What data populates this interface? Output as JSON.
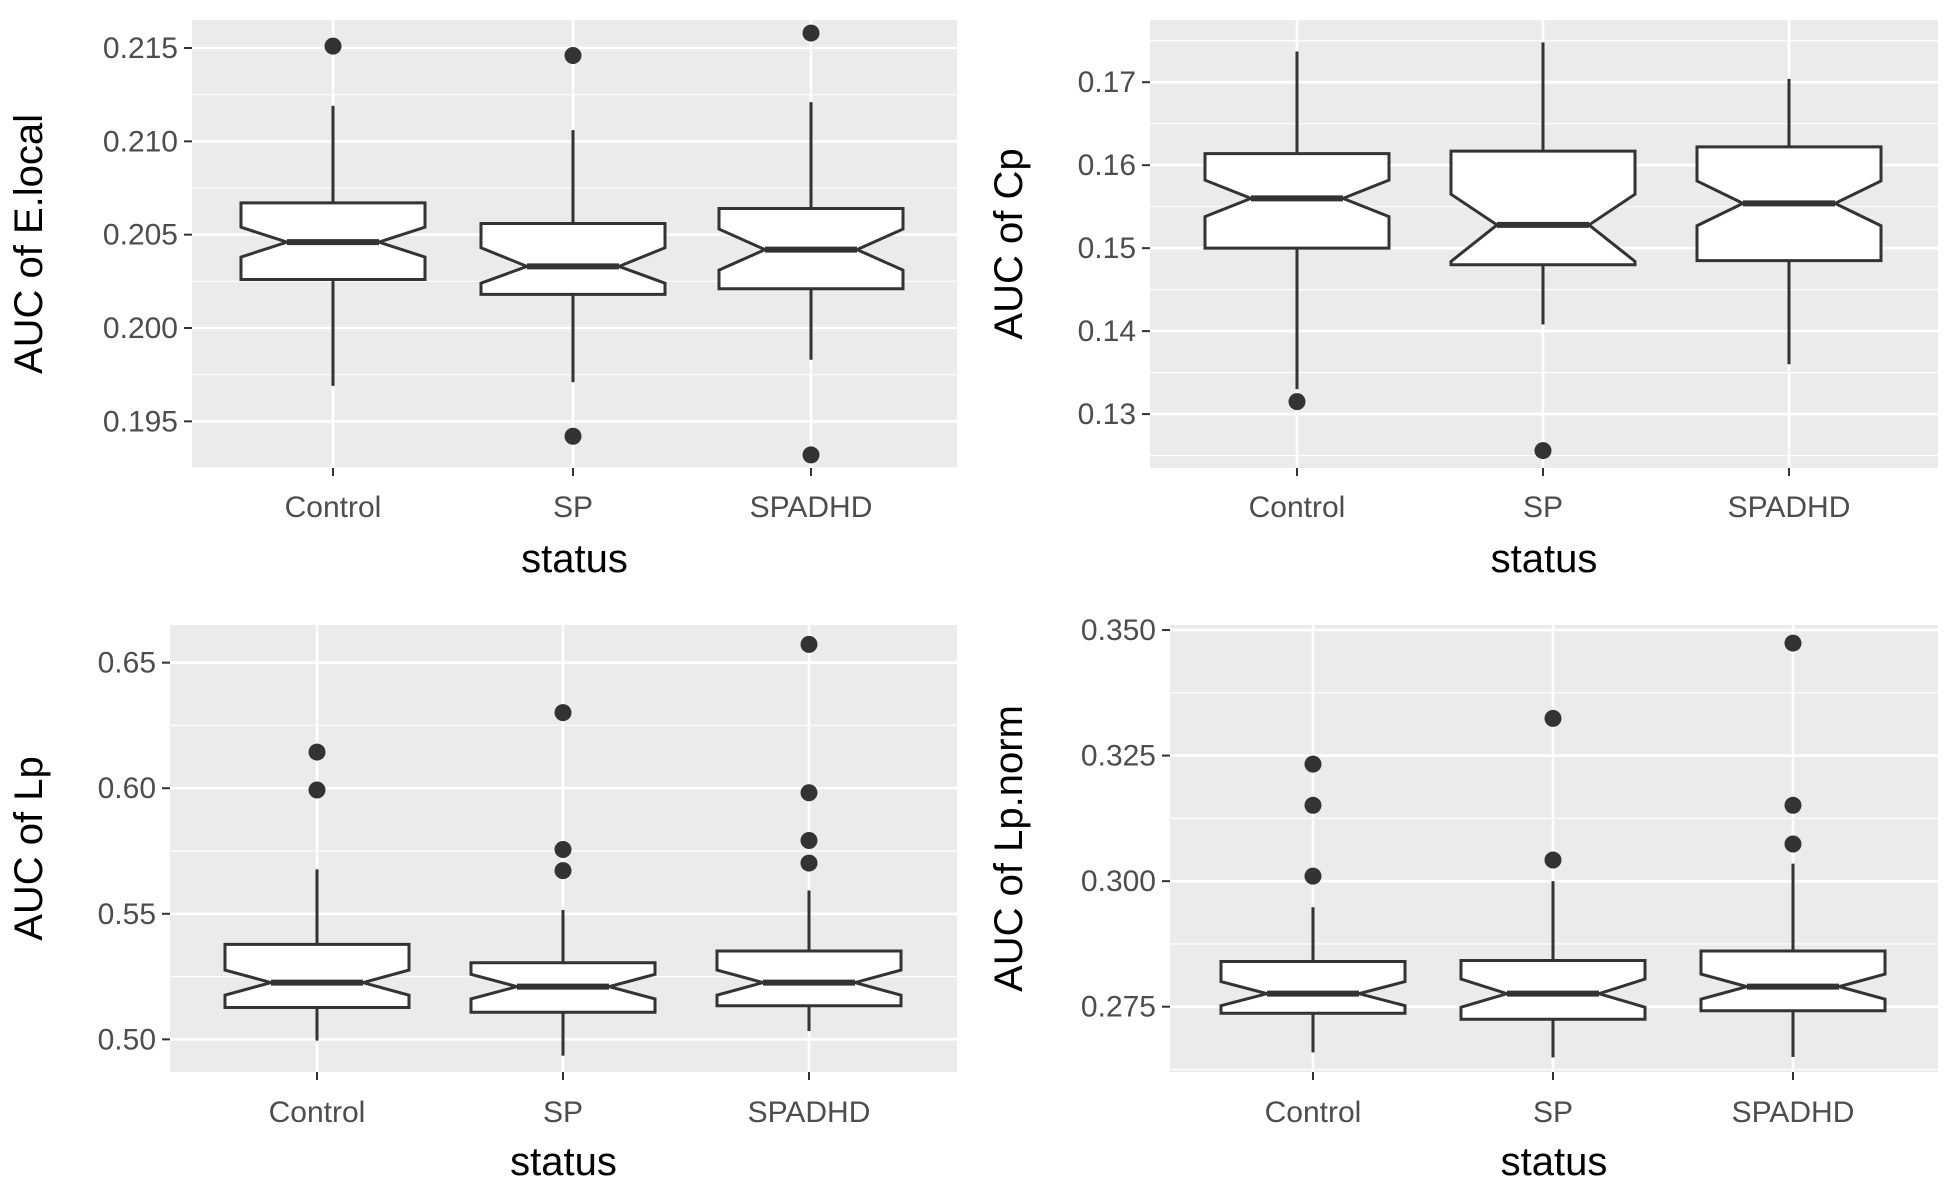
{
  "colors": {
    "panel_background": "#ebebeb",
    "gridline": "#ffffff",
    "box_fill": "#ffffff",
    "box_stroke": "#333333",
    "outlier": "#333333",
    "tick_text": "#4d4d4d",
    "axis_title": "#000000"
  },
  "chart_data": [
    {
      "type": "boxplot",
      "notched": true,
      "xlabel": "status",
      "ylabel": "AUC of E.local",
      "categories": [
        "Control",
        "SP",
        "SPADHD"
      ],
      "ylim": [
        0.1925,
        0.2165
      ],
      "yticks": [
        0.195,
        0.2,
        0.205,
        0.21,
        0.215
      ],
      "ytick_labels": [
        "0.195",
        "0.200",
        "0.205",
        "0.210",
        "0.215"
      ],
      "boxes": [
        {
          "category": "Control",
          "whisker_low": 0.1969,
          "q1": 0.2026,
          "median": 0.2046,
          "q3": 0.2067,
          "whisker_high": 0.2119,
          "notch_low": 0.2038,
          "notch_high": 0.2054,
          "outliers": [
            0.2151
          ]
        },
        {
          "category": "SP",
          "whisker_low": 0.1971,
          "q1": 0.2018,
          "median": 0.2033,
          "q3": 0.2056,
          "whisker_high": 0.2106,
          "notch_low": 0.2024,
          "notch_high": 0.2043,
          "outliers": [
            0.2146,
            0.1942
          ]
        },
        {
          "category": "SPADHD",
          "whisker_low": 0.1983,
          "q1": 0.2021,
          "median": 0.2042,
          "q3": 0.2064,
          "whisker_high": 0.2121,
          "notch_low": 0.2031,
          "notch_high": 0.2053,
          "outliers": [
            0.2158,
            0.1932
          ]
        }
      ]
    },
    {
      "type": "boxplot",
      "notched": true,
      "xlabel": "status",
      "ylabel": "AUC of Cp",
      "categories": [
        "Control",
        "SP",
        "SPADHD"
      ],
      "ylim": [
        0.1235,
        0.1775
      ],
      "yticks": [
        0.13,
        0.14,
        0.15,
        0.16,
        0.17
      ],
      "ytick_labels": [
        "0.13",
        "0.14",
        "0.15",
        "0.16",
        "0.17"
      ],
      "boxes": [
        {
          "category": "Control",
          "whisker_low": 0.133,
          "q1": 0.15,
          "median": 0.156,
          "q3": 0.1614,
          "whisker_high": 0.1737,
          "notch_low": 0.1538,
          "notch_high": 0.1582,
          "outliers": [
            0.1315
          ]
        },
        {
          "category": "SP",
          "whisker_low": 0.1408,
          "q1": 0.148,
          "median": 0.1528,
          "q3": 0.1617,
          "whisker_high": 0.1748,
          "notch_low": 0.1484,
          "notch_high": 0.1565,
          "outliers": [
            0.1256
          ]
        },
        {
          "category": "SPADHD",
          "whisker_low": 0.136,
          "q1": 0.1485,
          "median": 0.1554,
          "q3": 0.1622,
          "whisker_high": 0.1704,
          "notch_low": 0.1527,
          "notch_high": 0.1581,
          "outliers": []
        }
      ]
    },
    {
      "type": "boxplot",
      "notched": true,
      "xlabel": "status",
      "ylabel": "AUC of Lp",
      "categories": [
        "Control",
        "SP",
        "SPADHD"
      ],
      "ylim": [
        0.487,
        0.665
      ],
      "yticks": [
        0.5,
        0.55,
        0.6,
        0.65
      ],
      "ytick_labels": [
        "0.50",
        "0.55",
        "0.60",
        "0.65"
      ],
      "boxes": [
        {
          "category": "Control",
          "whisker_low": 0.4995,
          "q1": 0.5127,
          "median": 0.5226,
          "q3": 0.5378,
          "whisker_high": 0.5677,
          "notch_low": 0.5176,
          "notch_high": 0.5276,
          "outliers": [
            0.5993,
            0.6144
          ]
        },
        {
          "category": "SP",
          "whisker_low": 0.4935,
          "q1": 0.5108,
          "median": 0.521,
          "q3": 0.5305,
          "whisker_high": 0.5515,
          "notch_low": 0.5161,
          "notch_high": 0.5259,
          "outliers": [
            0.5672,
            0.5756,
            0.6301
          ]
        },
        {
          "category": "SPADHD",
          "whisker_low": 0.5033,
          "q1": 0.5134,
          "median": 0.5226,
          "q3": 0.5352,
          "whisker_high": 0.5593,
          "notch_low": 0.5176,
          "notch_high": 0.5276,
          "outliers": [
            0.5702,
            0.5792,
            0.5982,
            0.6573
          ]
        }
      ]
    },
    {
      "type": "boxplot",
      "notched": true,
      "xlabel": "status",
      "ylabel": "AUC of Lp.norm",
      "categories": [
        "Control",
        "SP",
        "SPADHD"
      ],
      "ylim": [
        0.262,
        0.351
      ],
      "yticks": [
        0.275,
        0.3,
        0.325,
        0.35
      ],
      "ytick_labels": [
        "0.275",
        "0.300",
        "0.325",
        "0.350"
      ],
      "boxes": [
        {
          "category": "Control",
          "whisker_low": 0.2659,
          "q1": 0.2737,
          "median": 0.2776,
          "q3": 0.284,
          "whisker_high": 0.2948,
          "notch_low": 0.2752,
          "notch_high": 0.28,
          "outliers": [
            0.301,
            0.3151,
            0.3233
          ]
        },
        {
          "category": "SP",
          "whisker_low": 0.2649,
          "q1": 0.2725,
          "median": 0.2776,
          "q3": 0.2842,
          "whisker_high": 0.3,
          "notch_low": 0.2749,
          "notch_high": 0.2805,
          "outliers": [
            0.3042,
            0.3324
          ]
        },
        {
          "category": "SPADHD",
          "whisker_low": 0.265,
          "q1": 0.2742,
          "median": 0.279,
          "q3": 0.2861,
          "whisker_high": 0.3035,
          "notch_low": 0.2765,
          "notch_high": 0.2815,
          "outliers": [
            0.3074,
            0.3151,
            0.3474
          ]
        }
      ]
    }
  ]
}
